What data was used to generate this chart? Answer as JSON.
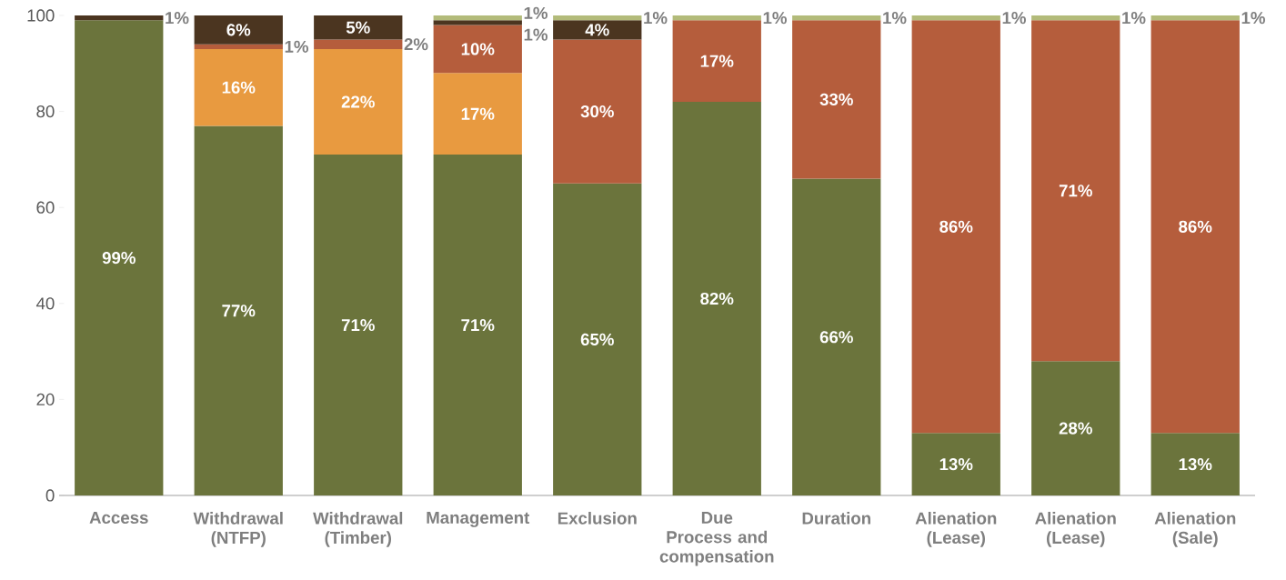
{
  "chart_data": {
    "type": "bar",
    "stacked": true,
    "categories": [
      "Access",
      "Withdrawal (NTFP)",
      "Withdrawal (Timber)",
      "Management",
      "Exclusion",
      "Due Process and compensation",
      "Duration",
      "Alienation (Lease)",
      "Alienation (Lease)",
      "Alienation (Sale)"
    ],
    "ylim": [
      0,
      100
    ],
    "yticks": [
      0,
      20,
      40,
      60,
      80,
      100
    ],
    "series": [
      {
        "color": "#6b743c",
        "values": [
          99,
          77,
          71,
          71,
          65,
          82,
          66,
          13,
          28,
          13
        ],
        "value_labels": [
          "99%",
          "77%",
          "71%",
          "71%",
          "65%",
          "82%",
          "66%",
          "13%",
          "28%",
          "13%"
        ]
      },
      {
        "color": "#e89a40",
        "values": [
          null,
          16,
          22,
          17,
          null,
          null,
          null,
          null,
          null,
          null
        ],
        "value_labels": [
          null,
          "16%",
          "22%",
          "17%",
          null,
          null,
          null,
          null,
          null,
          null
        ]
      },
      {
        "color": "#b55d3c",
        "values": [
          null,
          1,
          2,
          10,
          30,
          17,
          33,
          86,
          71,
          86
        ],
        "value_labels": [
          null,
          "1%",
          "2%",
          "10%",
          "30%",
          "17%",
          "33%",
          "86%",
          "71%",
          "86%"
        ]
      },
      {
        "color": "#4b3520",
        "values": [
          1,
          6,
          5,
          1,
          4,
          null,
          null,
          null,
          null,
          null
        ],
        "value_labels": [
          "1%",
          "6%",
          "5%",
          "1%",
          "4%",
          null,
          null,
          null,
          null,
          null
        ]
      },
      {
        "color": "#b3bb7a",
        "values": [
          null,
          null,
          null,
          1,
          1,
          1,
          1,
          1,
          1,
          1
        ],
        "value_labels": [
          null,
          null,
          null,
          "1%",
          "1%",
          "1%",
          "1%",
          "1%",
          "1%",
          "1%"
        ]
      }
    ]
  }
}
